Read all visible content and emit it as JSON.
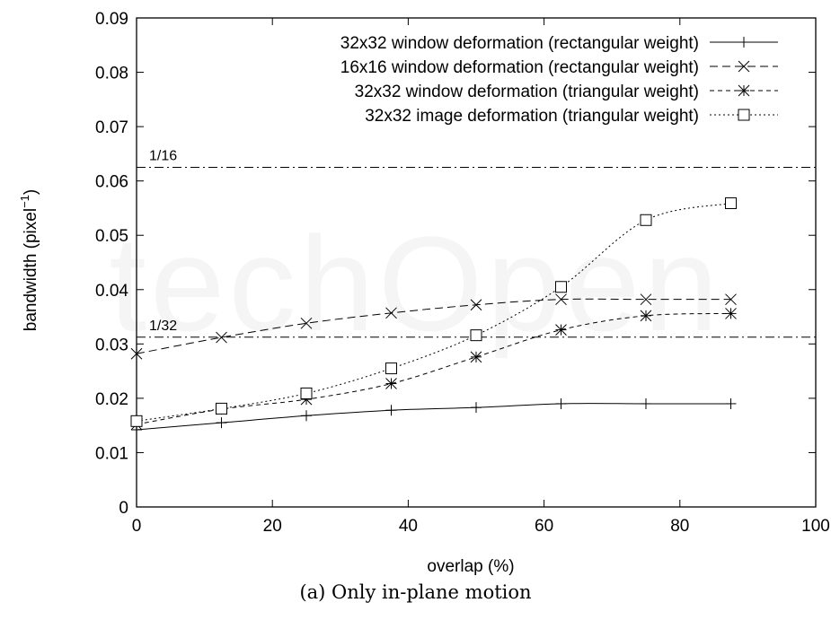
{
  "chart_data": {
    "type": "line",
    "xlabel": "overlap (%)",
    "ylabel": "bandwidth (pixel",
    "ylabel_sup": "−1",
    "ylabel_close": ")",
    "xlim": [
      0,
      100
    ],
    "ylim": [
      0,
      0.09
    ],
    "xticks": [
      "0",
      "20",
      "40",
      "60",
      "80",
      "100"
    ],
    "yticks": [
      "0",
      "0.01",
      "0.02",
      "0.03",
      "0.04",
      "0.05",
      "0.06",
      "0.07",
      "0.08",
      "0.09"
    ],
    "legend_position": "top-right",
    "grid": false,
    "x": [
      0,
      12.5,
      25,
      37.5,
      50,
      62.5,
      75,
      87.5
    ],
    "series": [
      {
        "name": "32x32 window deformation (rectangular weight)",
        "marker": "plus",
        "dash": "solid",
        "values": [
          0.0142,
          0.0155,
          0.0168,
          0.0178,
          0.0183,
          0.019,
          0.019,
          0.019
        ]
      },
      {
        "name": "16x16 window deformation (rectangular weight)",
        "marker": "cross",
        "dash": "dashed",
        "values": [
          0.0282,
          0.0312,
          0.0338,
          0.0357,
          0.0372,
          0.0382,
          0.0382,
          0.0382
        ]
      },
      {
        "name": "32x32 window deformation (triangular weight)",
        "marker": "star",
        "dash": "short-dashed",
        "values": [
          0.0152,
          0.018,
          0.0198,
          0.0227,
          0.0276,
          0.0326,
          0.0352,
          0.0356
        ]
      },
      {
        "name": "32x32 image deformation (triangular weight)",
        "marker": "square",
        "dash": "dotted",
        "values": [
          0.0158,
          0.0181,
          0.0209,
          0.0255,
          0.0316,
          0.0405,
          0.0528,
          0.0559
        ]
      }
    ],
    "reference_lines": [
      {
        "label": "1/16",
        "value": 0.0625
      },
      {
        "label": "1/32",
        "value": 0.03125
      }
    ]
  },
  "caption": "(a)  Only in-plane motion",
  "watermark": "techOpen"
}
